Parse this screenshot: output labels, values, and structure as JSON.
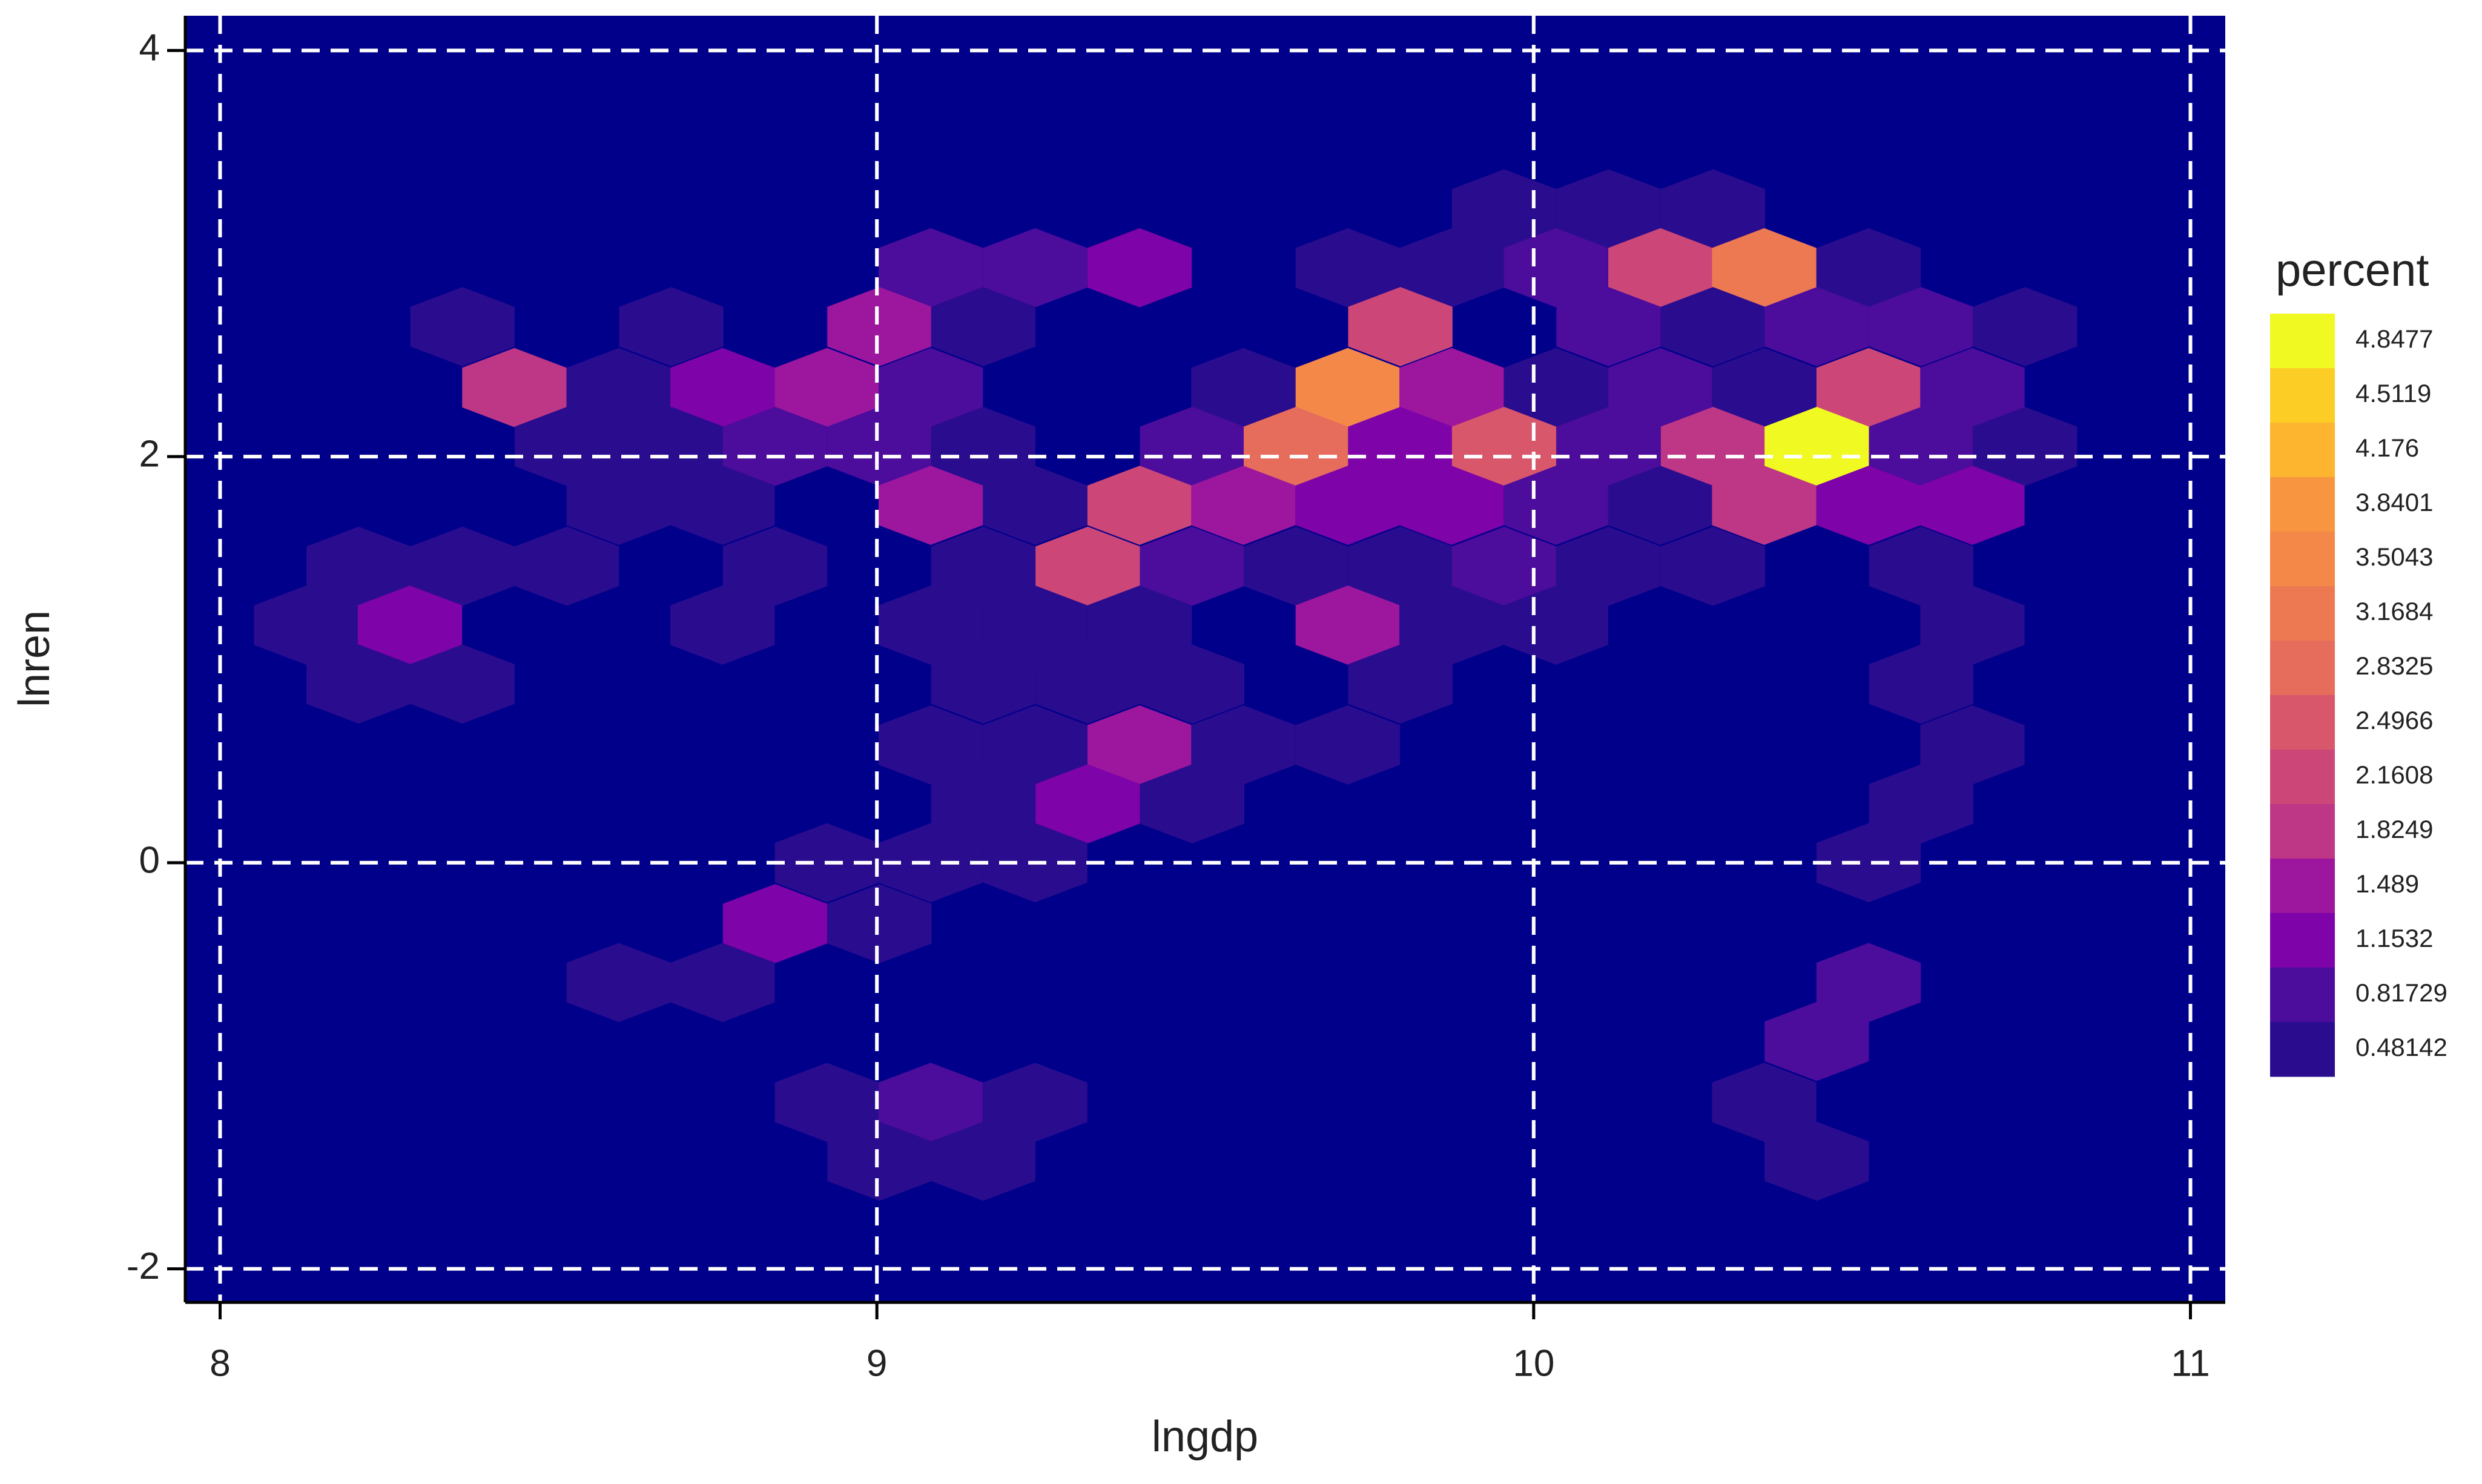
{
  "chart_data": {
    "type": "hexbin",
    "x_label": "lngdp",
    "y_label": "lnren",
    "xlim": [
      7.947,
      11.053
    ],
    "ylim": [
      -2.165,
      4.171
    ],
    "xticks": [
      8,
      9,
      10,
      11
    ],
    "yticks": [
      -2,
      0,
      2,
      4
    ],
    "grid": true,
    "background": "#00008b",
    "x": [
      9.955,
      10.114,
      10.273,
      9.082,
      9.241,
      9.4,
      9.717,
      9.875,
      10.034,
      10.193,
      10.351,
      10.51,
      8.369,
      8.687,
      9.004,
      9.162,
      9.797,
      10.114,
      10.273,
      10.431,
      10.59,
      10.748,
      8.448,
      8.607,
      8.765,
      8.924,
      9.082,
      9.558,
      9.717,
      9.875,
      10.034,
      10.193,
      10.351,
      10.51,
      10.668,
      8.528,
      8.687,
      8.845,
      9.004,
      9.162,
      9.48,
      9.638,
      9.797,
      9.955,
      10.114,
      10.273,
      10.431,
      10.59,
      10.748,
      8.607,
      8.765,
      9.082,
      9.241,
      9.4,
      9.558,
      9.717,
      9.875,
      10.034,
      10.193,
      10.351,
      10.51,
      10.668,
      8.211,
      8.369,
      8.528,
      8.845,
      9.162,
      9.321,
      9.48,
      9.638,
      9.797,
      9.955,
      10.114,
      10.273,
      10.59,
      8.131,
      8.289,
      8.765,
      9.082,
      9.241,
      9.4,
      9.717,
      9.875,
      10.034,
      10.668,
      8.211,
      8.369,
      9.162,
      9.321,
      9.48,
      9.797,
      10.59,
      9.082,
      9.241,
      9.4,
      9.558,
      9.717,
      10.668,
      9.162,
      9.321,
      9.48,
      10.59,
      8.924,
      9.082,
      9.241,
      10.51,
      8.845,
      9.004,
      8.607,
      8.765,
      10.51,
      10.431,
      8.924,
      9.082,
      9.241,
      10.351,
      9.004,
      9.162,
      10.431
    ],
    "y": [
      3.22,
      3.22,
      3.22,
      2.93,
      2.93,
      2.93,
      2.93,
      2.93,
      2.93,
      2.93,
      2.93,
      2.93,
      2.64,
      2.64,
      2.64,
      2.64,
      2.64,
      2.64,
      2.64,
      2.64,
      2.64,
      2.64,
      2.34,
      2.34,
      2.34,
      2.34,
      2.34,
      2.34,
      2.34,
      2.34,
      2.34,
      2.34,
      2.34,
      2.34,
      2.34,
      2.05,
      2.05,
      2.05,
      2.05,
      2.05,
      2.05,
      2.05,
      2.05,
      2.05,
      2.05,
      2.05,
      2.05,
      2.05,
      2.05,
      1.76,
      1.76,
      1.76,
      1.76,
      1.76,
      1.76,
      1.76,
      1.76,
      1.76,
      1.76,
      1.76,
      1.76,
      1.76,
      1.46,
      1.46,
      1.46,
      1.46,
      1.46,
      1.46,
      1.46,
      1.46,
      1.46,
      1.46,
      1.46,
      1.46,
      1.46,
      1.17,
      1.17,
      1.17,
      1.17,
      1.17,
      1.17,
      1.17,
      1.17,
      1.17,
      1.17,
      0.88,
      0.88,
      0.88,
      0.88,
      0.88,
      0.88,
      0.88,
      0.58,
      0.58,
      0.58,
      0.58,
      0.58,
      0.58,
      0.29,
      0.29,
      0.29,
      0.29,
      0.0,
      0.0,
      0.0,
      0.0,
      -0.3,
      -0.3,
      -0.59,
      -0.59,
      -0.59,
      -0.88,
      -1.18,
      -1.18,
      -1.18,
      -1.18,
      -1.47,
      -1.47,
      -1.47
    ],
    "values": [
      0.48,
      0.48,
      0.48,
      0.82,
      0.82,
      1.15,
      0.48,
      0.48,
      0.82,
      2.16,
      3.17,
      0.48,
      0.48,
      0.48,
      1.49,
      0.48,
      2.16,
      0.82,
      0.48,
      0.82,
      0.82,
      0.48,
      1.82,
      0.48,
      1.15,
      1.49,
      0.82,
      0.48,
      3.5,
      1.49,
      0.48,
      0.82,
      0.48,
      2.16,
      0.82,
      0.48,
      0.48,
      0.82,
      0.82,
      0.48,
      0.82,
      2.83,
      1.15,
      2.5,
      0.82,
      1.82,
      4.85,
      0.82,
      0.48,
      0.48,
      0.48,
      1.49,
      0.48,
      2.16,
      1.49,
      1.15,
      1.15,
      0.82,
      0.48,
      1.82,
      1.15,
      1.15,
      0.48,
      0.48,
      0.48,
      0.48,
      0.48,
      2.16,
      0.82,
      0.48,
      0.48,
      0.82,
      0.48,
      0.48,
      0.48,
      0.48,
      1.15,
      0.48,
      0.48,
      0.48,
      0.48,
      1.49,
      0.48,
      0.48,
      0.48,
      0.48,
      0.48,
      0.48,
      0.48,
      0.48,
      0.48,
      0.48,
      0.48,
      0.48,
      1.49,
      0.48,
      0.48,
      0.48,
      0.48,
      1.15,
      0.48,
      0.48,
      0.48,
      0.48,
      0.48,
      0.48,
      1.15,
      0.48,
      0.48,
      0.48,
      0.82,
      0.82,
      0.48,
      0.82,
      0.48,
      0.48,
      0.48,
      0.48,
      0.48
    ],
    "legend": {
      "title": "percent",
      "ticks": [
        4.8477,
        4.5119,
        4.176,
        3.8401,
        3.5043,
        3.1684,
        2.8325,
        2.4966,
        2.1608,
        1.8249,
        1.489,
        1.1532,
        0.81729,
        0.48142
      ],
      "colors": [
        "#f0f921",
        "#fcce25",
        "#fdb42f",
        "#f89540",
        "#f48849",
        "#ed7953",
        "#e66c5c",
        "#d8576b",
        "#cc4778",
        "#bd3786",
        "#9c179e",
        "#7e03a8",
        "#4c0c9c",
        "#2a0c8f"
      ]
    }
  }
}
